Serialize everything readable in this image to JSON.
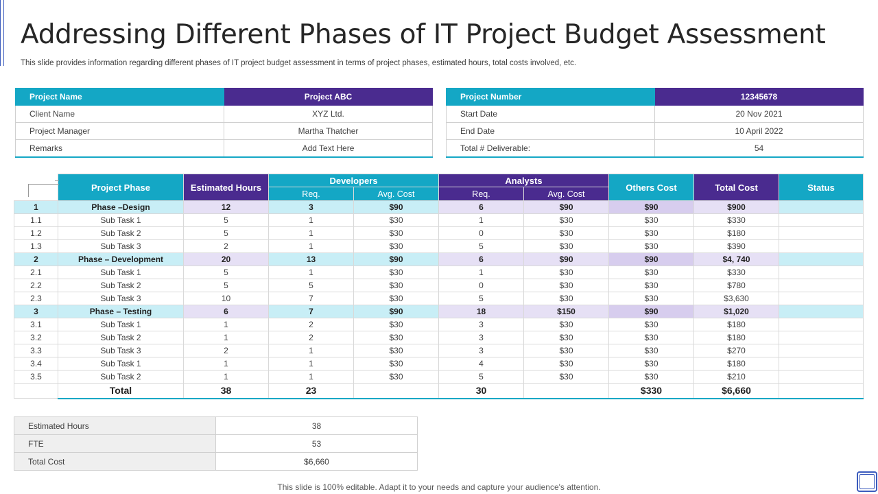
{
  "title": "Addressing Different Phases of IT Project Budget Assessment",
  "subtitle": "This slide provides information regarding different phases of IT project budget assessment in terms of project phases, estimated hours, total costs involved, etc.",
  "info_left": {
    "header": {
      "key": "Project Name",
      "value": "Project ABC"
    },
    "rows": [
      {
        "key": "Client Name",
        "value": "XYZ  Ltd."
      },
      {
        "key": "Project Manager",
        "value": "Martha Thatcher"
      },
      {
        "key": "Remarks",
        "value": "Add Text Here"
      }
    ]
  },
  "info_right": {
    "header": {
      "key": "Project Number",
      "value": "12345678"
    },
    "rows": [
      {
        "key": "Start Date",
        "value": "20 Nov 2021"
      },
      {
        "key": "End Date",
        "value": "10 April 2022"
      },
      {
        "key": "Total # Deliverable:",
        "value": "54"
      }
    ]
  },
  "table": {
    "headers": {
      "phase": "Project Phase",
      "hours": "Estimated Hours",
      "developers": "Developers",
      "analysts": "Analysts",
      "req": "Req.",
      "avg_cost": "Avg. Cost",
      "others": "Others Cost",
      "total": "Total Cost",
      "status": "Status"
    },
    "rows": [
      {
        "idx": "1",
        "name": "Phase –Design",
        "hours": "12",
        "dev_req": "3",
        "dev_cost": "$90",
        "an_req": "6",
        "an_cost": "$90",
        "others": "$90",
        "total": "$900",
        "status": "",
        "phase": true
      },
      {
        "idx": "1.1",
        "name": "Sub Task 1",
        "hours": "5",
        "dev_req": "1",
        "dev_cost": "$30",
        "an_req": "1",
        "an_cost": "$30",
        "others": "$30",
        "total": "$330",
        "status": ""
      },
      {
        "idx": "1.2",
        "name": "Sub Task 2",
        "hours": "5",
        "dev_req": "1",
        "dev_cost": "$30",
        "an_req": "0",
        "an_cost": "$30",
        "others": "$30",
        "total": "$180",
        "status": ""
      },
      {
        "idx": "1.3",
        "name": "Sub Task 3",
        "hours": "2",
        "dev_req": "1",
        "dev_cost": "$30",
        "an_req": "5",
        "an_cost": "$30",
        "others": "$30",
        "total": "$390",
        "status": ""
      },
      {
        "idx": "2",
        "name": "Phase – Development",
        "hours": "20",
        "dev_req": "13",
        "dev_cost": "$90",
        "an_req": "6",
        "an_cost": "$90",
        "others": "$90",
        "total": "$4, 740",
        "status": "",
        "phase": true
      },
      {
        "idx": "2.1",
        "name": "Sub Task 1",
        "hours": "5",
        "dev_req": "1",
        "dev_cost": "$30",
        "an_req": "1",
        "an_cost": "$30",
        "others": "$30",
        "total": "$330",
        "status": ""
      },
      {
        "idx": "2.2",
        "name": "Sub Task 2",
        "hours": "5",
        "dev_req": "5",
        "dev_cost": "$30",
        "an_req": "0",
        "an_cost": "$30",
        "others": "$30",
        "total": "$780",
        "status": ""
      },
      {
        "idx": "2.3",
        "name": "Sub Task 3",
        "hours": "10",
        "dev_req": "7",
        "dev_cost": "$30",
        "an_req": "5",
        "an_cost": "$30",
        "others": "$30",
        "total": "$3,630",
        "status": ""
      },
      {
        "idx": "3",
        "name": "Phase – Testing",
        "hours": "6",
        "dev_req": "7",
        "dev_cost": "$90",
        "an_req": "18",
        "an_cost": "$150",
        "others": "$90",
        "total": "$1,020",
        "status": "",
        "phase": true
      },
      {
        "idx": "3.1",
        "name": "Sub Task 1",
        "hours": "1",
        "dev_req": "2",
        "dev_cost": "$30",
        "an_req": "3",
        "an_cost": "$30",
        "others": "$30",
        "total": "$180",
        "status": ""
      },
      {
        "idx": "3.2",
        "name": "Sub Task 2",
        "hours": "1",
        "dev_req": "2",
        "dev_cost": "$30",
        "an_req": "3",
        "an_cost": "$30",
        "others": "$30",
        "total": "$180",
        "status": ""
      },
      {
        "idx": "3.3",
        "name": "Sub Task 3",
        "hours": "2",
        "dev_req": "1",
        "dev_cost": "$30",
        "an_req": "3",
        "an_cost": "$30",
        "others": "$30",
        "total": "$270",
        "status": ""
      },
      {
        "idx": "3.4",
        "name": "Sub Task 1",
        "hours": "1",
        "dev_req": "1",
        "dev_cost": "$30",
        "an_req": "4",
        "an_cost": "$30",
        "others": "$30",
        "total": "$180",
        "status": ""
      },
      {
        "idx": "3.5",
        "name": "Sub Task 2",
        "hours": "1",
        "dev_req": "1",
        "dev_cost": "$30",
        "an_req": "5",
        "an_cost": "$30",
        "others": "$30",
        "total": "$210",
        "status": ""
      }
    ],
    "totals": {
      "label": "Total",
      "hours": "38",
      "dev_req": "23",
      "an_req": "30",
      "others": "$330",
      "total": "$6,660"
    }
  },
  "summary": [
    {
      "key": "Estimated Hours",
      "value": "38"
    },
    {
      "key": "FTE",
      "value": "53"
    },
    {
      "key": "Total Cost",
      "value": "$6,660"
    }
  ],
  "footer": "This slide is 100% editable. Adapt it to your needs and capture your audience's attention.",
  "colors": {
    "teal": "#14a7c5",
    "purple": "#4a2b8f"
  }
}
